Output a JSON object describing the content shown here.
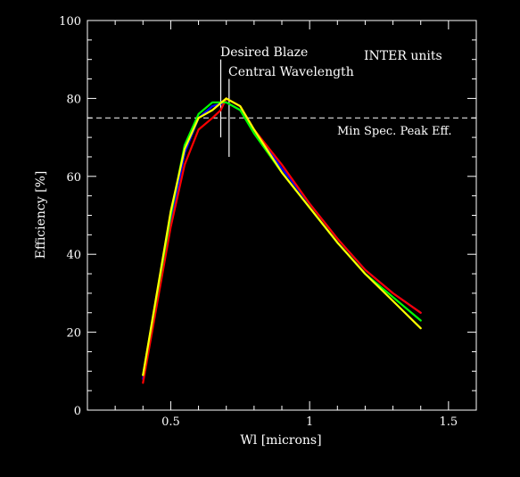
{
  "chart_data": {
    "type": "line",
    "xlabel": "Wl [microns]",
    "ylabel": "Efficiency [%]",
    "xlim": [
      0.2,
      1.6
    ],
    "ylim": [
      0,
      100
    ],
    "x_ticks": [
      0.5,
      1,
      1.5
    ],
    "x_tick_labels": [
      "0.5",
      "1",
      "1.5"
    ],
    "y_ticks": [
      0,
      20,
      40,
      60,
      80,
      100
    ],
    "y_tick_labels": [
      "0",
      "20",
      "40",
      "60",
      "80",
      "100"
    ],
    "grid": false,
    "background": "#000000",
    "axis_color": "#ffffff",
    "series": [
      {
        "color": "#0000ff",
        "x": [
          0.4,
          0.5,
          0.55,
          0.6,
          0.65,
          0.7,
          0.75,
          0.8,
          0.9,
          1.0,
          1.1,
          1.2,
          1.3,
          1.4
        ],
        "y": [
          8,
          48,
          66,
          75,
          78,
          79,
          77,
          72,
          62,
          53,
          44,
          36,
          30,
          25
        ]
      },
      {
        "color": "#ff0000",
        "x": [
          0.4,
          0.5,
          0.55,
          0.6,
          0.65,
          0.68,
          0.7,
          0.75,
          0.8,
          0.9,
          1.0,
          1.1,
          1.2,
          1.3,
          1.4
        ],
        "y": [
          7,
          47,
          63,
          72,
          75,
          77,
          80,
          78,
          72,
          63,
          53,
          44,
          36,
          30,
          25
        ]
      },
      {
        "color": "#00ff00",
        "x": [
          0.4,
          0.5,
          0.55,
          0.6,
          0.65,
          0.7,
          0.75,
          0.8,
          0.9,
          1.0,
          1.1,
          1.2,
          1.3,
          1.4
        ],
        "y": [
          9,
          50,
          68,
          76,
          79,
          79,
          77,
          71,
          61,
          52,
          43,
          35,
          29,
          23
        ]
      },
      {
        "color": "#ffff00",
        "x": [
          0.4,
          0.5,
          0.55,
          0.6,
          0.65,
          0.7,
          0.75,
          0.8,
          0.9,
          1.0,
          1.1,
          1.2,
          1.3,
          1.4
        ],
        "y": [
          9,
          51,
          67,
          75,
          77,
          80,
          78,
          72,
          61,
          52,
          43,
          35,
          28,
          21
        ]
      }
    ],
    "reference_line": {
      "y": 75,
      "label": "Min Spec. Peak Eff.",
      "color": "#ffffff",
      "style": "dashed"
    },
    "markers": [
      {
        "x": 0.68,
        "y_top": 90,
        "y_bottom": 70,
        "label": "Desired Blaze"
      },
      {
        "x": 0.71,
        "y_top": 85,
        "y_bottom": 65,
        "label": "Central Wavelength"
      }
    ],
    "annotation": "INTER units"
  }
}
